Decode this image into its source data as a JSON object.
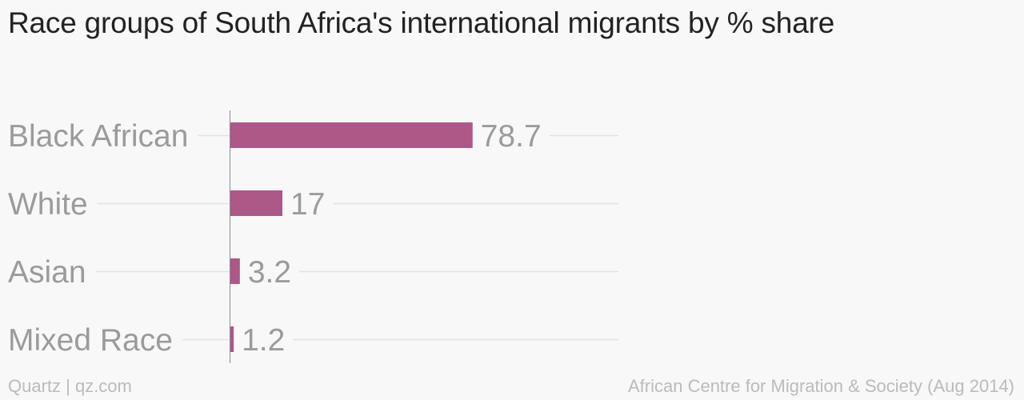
{
  "title": "Race groups of South Africa's international migrants by % share",
  "footer": {
    "credit": "Quartz | qz.com",
    "source": "African Centre for Migration & Society (Aug 2014)"
  },
  "colors": {
    "bar": "#ad5887",
    "label": "#9b9b9b",
    "grid": "#e3e3e3",
    "axis": "#8a8a8a"
  },
  "chart_data": {
    "type": "bar",
    "orientation": "horizontal",
    "categories": [
      "Black African",
      "White",
      "Asian",
      "Mixed Race"
    ],
    "values": [
      78.7,
      17,
      3.2,
      1.2
    ],
    "value_labels": [
      "78.7",
      "17",
      "3.2",
      "1.2"
    ],
    "xlim": [
      0,
      126
    ],
    "grid": true
  }
}
